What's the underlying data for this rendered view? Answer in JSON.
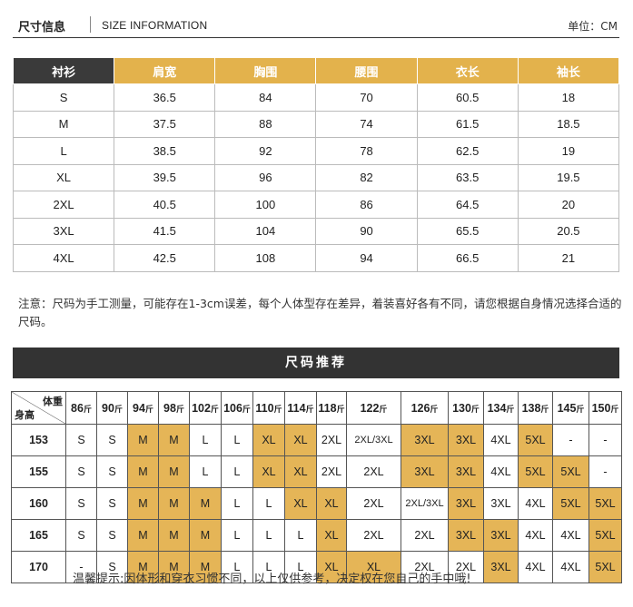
{
  "header": {
    "title_cn": "尺寸信息",
    "title_en": "SIZE INFORMATION",
    "unit": "单位：CM"
  },
  "size_table": {
    "headers": [
      "衬衫",
      "肩宽",
      "胸围",
      "腰围",
      "衣长",
      "袖长"
    ],
    "rows": [
      [
        "S",
        "36.5",
        "84",
        "70",
        "60.5",
        "18"
      ],
      [
        "M",
        "37.5",
        "88",
        "74",
        "61.5",
        "18.5"
      ],
      [
        "L",
        "38.5",
        "92",
        "78",
        "62.5",
        "19"
      ],
      [
        "XL",
        "39.5",
        "96",
        "82",
        "63.5",
        "19.5"
      ],
      [
        "2XL",
        "40.5",
        "100",
        "86",
        "64.5",
        "20"
      ],
      [
        "3XL",
        "41.5",
        "104",
        "90",
        "65.5",
        "20.5"
      ],
      [
        "4XL",
        "42.5",
        "108",
        "94",
        "66.5",
        "21"
      ]
    ]
  },
  "note": "注意：尺码为手工测量，可能存在1-3cm误差，每个人体型存在差异，着装喜好各有不同，请您根据自身情况选择合适的尺码。",
  "rec_title": "尺码推荐",
  "rec_table": {
    "corner_weight": "体重",
    "corner_height": "身高",
    "weights": [
      "86",
      "90",
      "94",
      "98",
      "102",
      "106",
      "110",
      "114",
      "118",
      "122",
      "126",
      "130",
      "134",
      "138",
      "145",
      "150"
    ],
    "weight_unit": "斤",
    "rows": [
      {
        "height": "153",
        "cells": [
          "S",
          "S",
          "M",
          "M",
          "L",
          "L",
          "XL",
          "XL",
          "2XL",
          "2XL/3XL",
          "3XL",
          "3XL",
          "4XL",
          "5XL",
          "-",
          "-"
        ]
      },
      {
        "height": "155",
        "cells": [
          "S",
          "S",
          "M",
          "M",
          "L",
          "L",
          "XL",
          "XL",
          "2XL",
          "2XL",
          "3XL",
          "3XL",
          "4XL",
          "5XL",
          "5XL",
          "-"
        ]
      },
      {
        "height": "160",
        "cells": [
          "S",
          "S",
          "M",
          "M",
          "M",
          "L",
          "L",
          "XL",
          "XL",
          "2XL",
          "2XL/3XL",
          "3XL",
          "3XL",
          "4XL",
          "5XL",
          "5XL"
        ]
      },
      {
        "height": "165",
        "cells": [
          "S",
          "S",
          "M",
          "M",
          "M",
          "L",
          "L",
          "L",
          "XL",
          "2XL",
          "2XL",
          "3XL",
          "3XL",
          "4XL",
          "4XL",
          "5XL"
        ]
      },
      {
        "height": "170",
        "cells": [
          "-",
          "S",
          "M",
          "M",
          "M",
          "L",
          "L",
          "L",
          "XL",
          "XL",
          "2XL",
          "2XL",
          "3XL",
          "4XL",
          "4XL",
          "5XL"
        ]
      }
    ],
    "highlight": [
      [
        2,
        3,
        6,
        7,
        10,
        11,
        13
      ],
      [
        2,
        3,
        6,
        7,
        10,
        11,
        13,
        14
      ],
      [
        2,
        3,
        4,
        7,
        8,
        11,
        14,
        15
      ],
      [
        2,
        3,
        4,
        8,
        11,
        12,
        15
      ],
      [
        2,
        3,
        4,
        8,
        9,
        12,
        15
      ]
    ]
  },
  "tip": "温馨提示:因体形和穿衣习惯不同，以上仅供参考，决定权在您自己的手中哦!",
  "colors": {
    "gold": "#e3b24c",
    "dark": "#333333"
  }
}
